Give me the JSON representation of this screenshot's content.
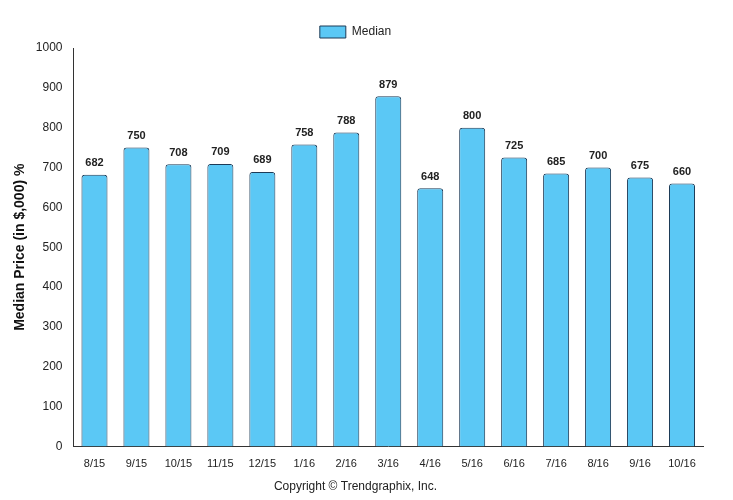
{
  "chart_data": {
    "type": "bar",
    "categories": [
      "8/15",
      "9/15",
      "10/15",
      "11/15",
      "12/15",
      "1/16",
      "2/16",
      "3/16",
      "4/16",
      "5/16",
      "6/16",
      "7/16",
      "8/16",
      "9/16",
      "10/16"
    ],
    "series": [
      {
        "name": "Median",
        "color": "#5bc8f5",
        "values": [
          682,
          750,
          708,
          709,
          689,
          758,
          788,
          879,
          648,
          800,
          725,
          685,
          700,
          675,
          660
        ]
      }
    ],
    "y_label": "Median Price (in $,000) %",
    "caption": "Copyright © Trendgraphix, Inc.",
    "ylim": [
      0,
      1000
    ],
    "yticks": [
      0,
      100,
      200,
      300,
      400,
      500,
      600,
      700,
      800,
      900,
      1000
    ],
    "grid": false,
    "legend": "top",
    "data_labels": true
  }
}
